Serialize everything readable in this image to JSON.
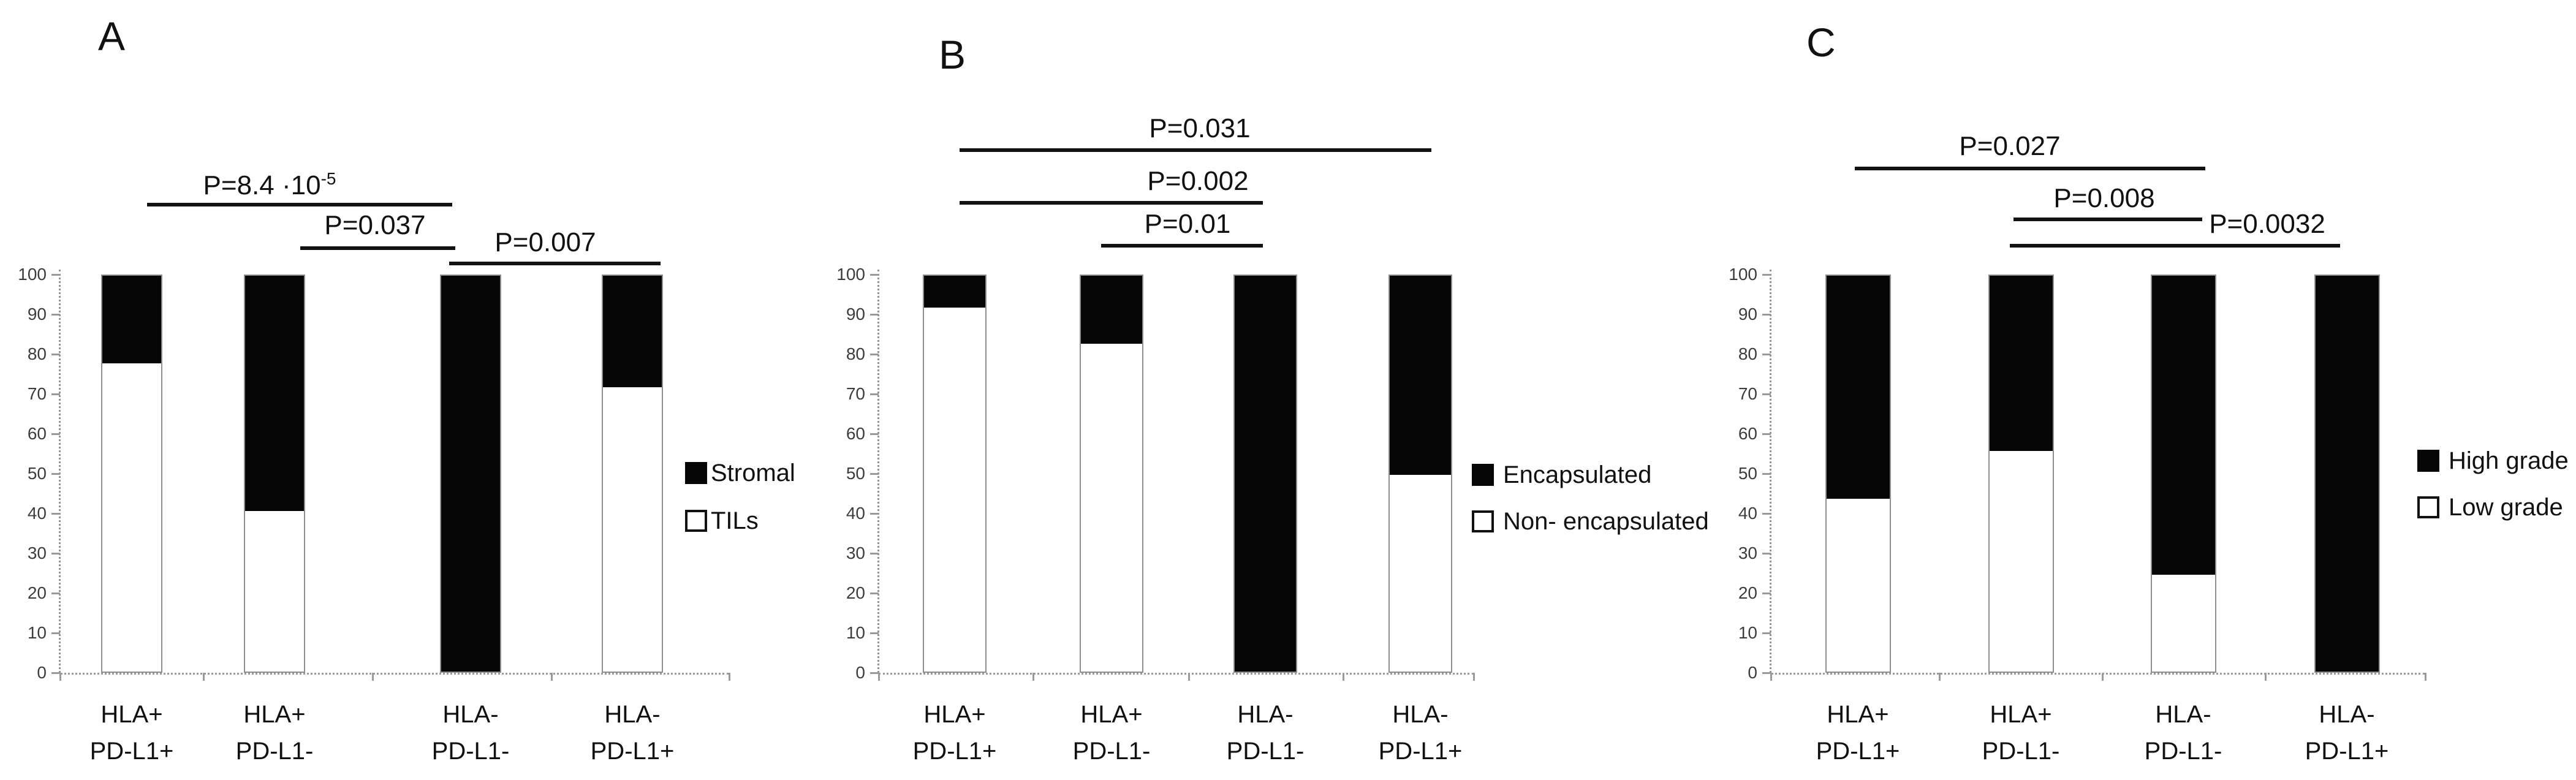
{
  "colors": {
    "bar_black": "#060606",
    "bar_white": "#ffffff",
    "bar_border": "#8f8f8f",
    "axis": "#9a9a9a",
    "text": "#111111",
    "annotation_line": "#121212",
    "background": "#ffffff"
  },
  "chart_data": [
    {
      "id": "A",
      "type": "bar",
      "subtype": "stacked-100-percent",
      "panel_label": "A",
      "categories": [
        [
          "HLA+",
          "PD-L1+"
        ],
        [
          "HLA+",
          "PD-L1-"
        ],
        [
          "HLA-",
          "PD-L1-"
        ],
        [
          "HLA-",
          "PD-L1+"
        ]
      ],
      "series": [
        {
          "name": "Stromal",
          "swatch": "filled",
          "values": [
            22,
            59,
            100,
            28
          ]
        },
        {
          "name": "TILs",
          "swatch": "open",
          "values": [
            78,
            41,
            0,
            72
          ]
        }
      ],
      "stack_order_bottom_to_top": [
        "TILs",
        "Stromal"
      ],
      "ylim": [
        0,
        100
      ],
      "yticks": [
        0,
        10,
        20,
        30,
        40,
        50,
        60,
        70,
        80,
        90,
        100
      ],
      "grid": false,
      "legend_position": "right",
      "annotations": [
        {
          "label": "P=8.4 ·10",
          "sup": "-5",
          "from": 0,
          "to": 2
        },
        {
          "label": "P=0.037",
          "sup": "",
          "from": 1,
          "to": 2
        },
        {
          "label": "P=0.007",
          "sup": "",
          "from": 2,
          "to": 3
        }
      ]
    },
    {
      "id": "B",
      "type": "bar",
      "subtype": "stacked-100-percent",
      "panel_label": "B",
      "categories": [
        [
          "HLA+",
          "PD-L1+"
        ],
        [
          "HLA+",
          "PD-L1-"
        ],
        [
          "HLA-",
          "PD-L1-"
        ],
        [
          "HLA-",
          "PD-L1+"
        ]
      ],
      "series": [
        {
          "name": "Encapsulated",
          "swatch": "filled",
          "values": [
            8,
            17,
            100,
            50
          ]
        },
        {
          "name": "Non- encapsulated",
          "swatch": "open",
          "values": [
            92,
            83,
            0,
            50
          ]
        }
      ],
      "stack_order_bottom_to_top": [
        "Non- encapsulated",
        "Encapsulated"
      ],
      "ylim": [
        0,
        100
      ],
      "yticks": [
        0,
        10,
        20,
        30,
        40,
        50,
        60,
        70,
        80,
        90,
        100
      ],
      "grid": false,
      "legend_position": "right",
      "annotations": [
        {
          "label": "P=0.031",
          "sup": "",
          "from": 0,
          "to": 3
        },
        {
          "label": "P=0.002",
          "sup": "",
          "from": 0,
          "to": 2
        },
        {
          "label": "P=0.01",
          "sup": "",
          "from": 1,
          "to": 2
        }
      ]
    },
    {
      "id": "C",
      "type": "bar",
      "subtype": "stacked-100-percent",
      "panel_label": "C",
      "categories": [
        [
          "HLA+",
          "PD-L1+"
        ],
        [
          "HLA+",
          "PD-L1-"
        ],
        [
          "HLA-",
          "PD-L1-"
        ],
        [
          "HLA-",
          "PD-L1+"
        ]
      ],
      "series": [
        {
          "name": "High grade",
          "swatch": "filled",
          "values": [
            56,
            44,
            75,
            100
          ]
        },
        {
          "name": "Low grade",
          "swatch": "open",
          "values": [
            44,
            56,
            25,
            0
          ]
        }
      ],
      "stack_order_bottom_to_top": [
        "Low grade",
        "High grade"
      ],
      "ylim": [
        0,
        100
      ],
      "yticks": [
        0,
        10,
        20,
        30,
        40,
        50,
        60,
        70,
        80,
        90,
        100
      ],
      "grid": false,
      "legend_position": "right",
      "annotations": [
        {
          "label": "P=0.027",
          "sup": "",
          "from": 0,
          "to": 2
        },
        {
          "label": "P=0.008",
          "sup": "",
          "from": 1,
          "to": 2
        },
        {
          "label": "P=0.0032",
          "sup": "",
          "from": 1,
          "to": 3
        }
      ]
    }
  ]
}
